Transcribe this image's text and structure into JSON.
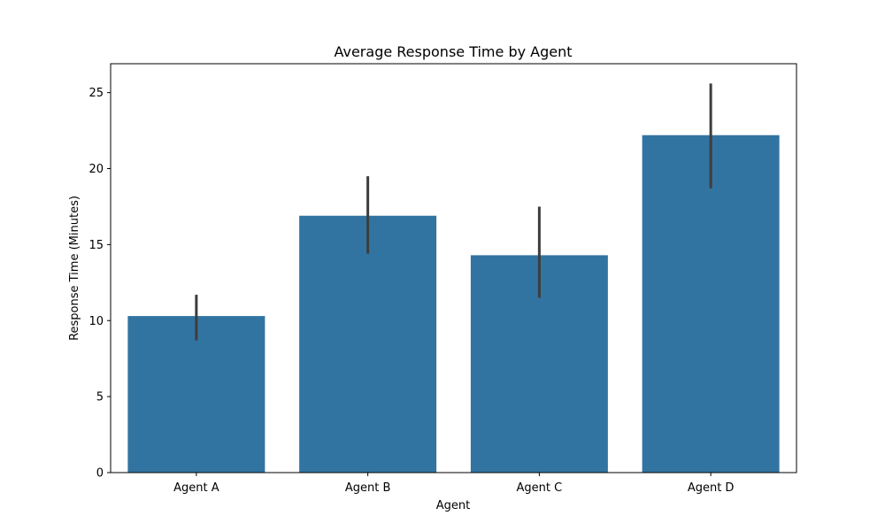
{
  "chart_data": {
    "type": "bar",
    "title": "Average Response Time by Agent",
    "xlabel": "Agent",
    "ylabel": "Response Time (Minutes)",
    "categories": [
      "Agent A",
      "Agent B",
      "Agent C",
      "Agent D"
    ],
    "values": [
      10.3,
      16.9,
      14.3,
      22.2
    ],
    "error_low": [
      8.7,
      14.4,
      11.5,
      18.7
    ],
    "error_high": [
      11.7,
      19.5,
      17.5,
      25.6
    ],
    "ylim": [
      0,
      26.9
    ],
    "yticks": [
      0,
      5,
      10,
      15,
      20,
      25
    ],
    "grid": false,
    "bar_color": "#3274a1",
    "error_color": "#3d3d3d"
  }
}
